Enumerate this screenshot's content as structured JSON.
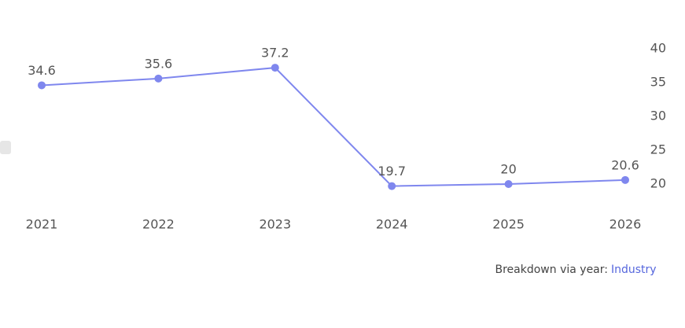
{
  "chart_data": {
    "type": "line",
    "categories": [
      "2021",
      "2022",
      "2023",
      "2024",
      "2025",
      "2026"
    ],
    "series": [
      {
        "name": "Industry",
        "color": "#7f87ee",
        "values": [
          34.6,
          35.6,
          37.2,
          19.7,
          20,
          20.6
        ]
      }
    ],
    "ylim": [
      15,
      45
    ],
    "yticks": [
      20,
      25,
      30,
      35,
      40
    ],
    "y_axis_side": "right",
    "footer": {
      "text": "Breakdown via year:",
      "link": "Industry"
    }
  }
}
